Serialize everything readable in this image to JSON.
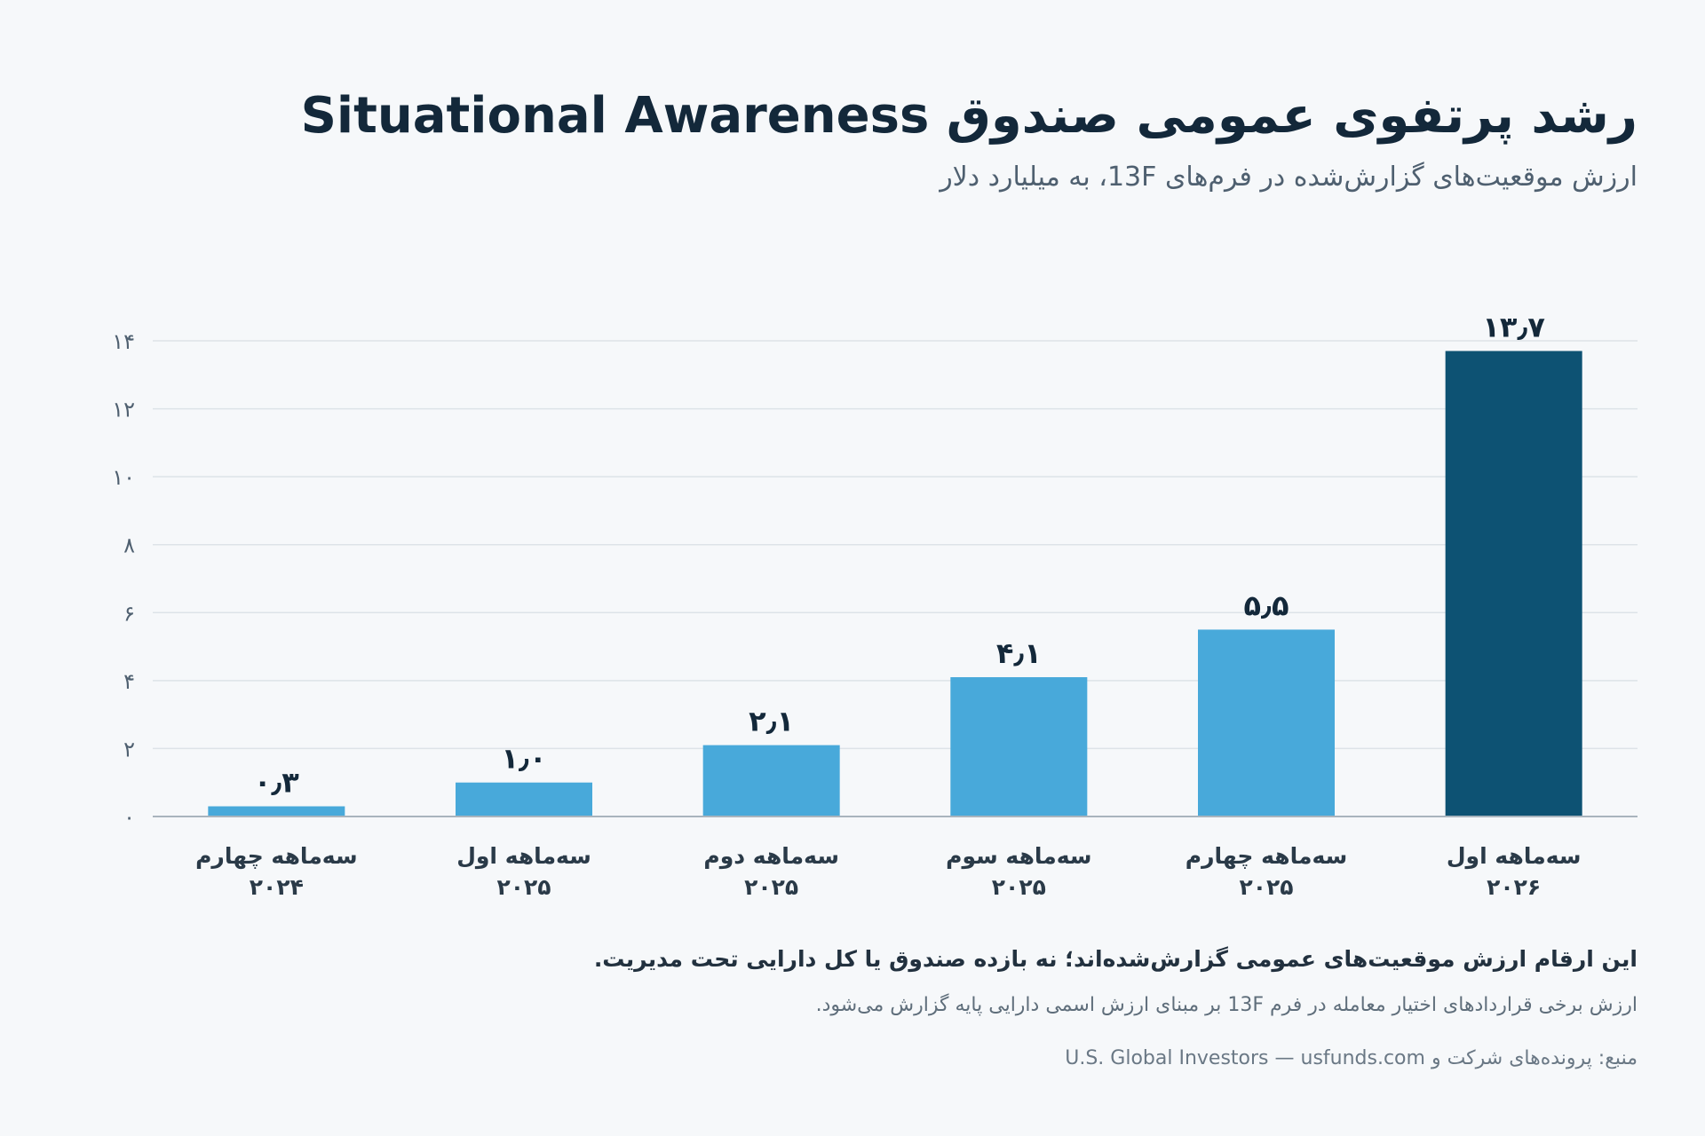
{
  "header": {
    "title": "رشد پرتفوی عمومی صندوق Situational Awareness",
    "subtitle": "ارزش موقعیت‌های گزارش‌شده در فرم‌های 13F، به میلیارد دلار"
  },
  "footer": {
    "note_main": "این ارقام ارزش موقعیت‌های عمومی گزارش‌شده‌اند؛ نه بازده صندوق یا کل دارایی تحت مدیریت.",
    "note_secondary": "ارزش برخی قراردادهای اختیار معامله در فرم 13F بر مبنای ارزش اسمی دارایی پایه گزارش می‌شود.",
    "source": "منبع: پرونده‌های شرکت و U.S. Global Investors — usfunds.com"
  },
  "colors": {
    "bar": "#48a9da",
    "bar_highlight": "#0d5273",
    "grid": "#dde3e8",
    "axis": "#a9b4bd",
    "text": "#13283a",
    "muted": "#4f6070"
  },
  "chart_data": {
    "type": "bar",
    "title": "رشد پرتفوی عمومی صندوق Situational Awareness",
    "subtitle": "ارزش موقعیت‌های گزارش‌شده در فرم‌های 13F، به میلیارد دلار",
    "categories": [
      [
        "سه‌ماهه چهارم",
        "۲۰۲۴"
      ],
      [
        "سه‌ماهه اول",
        "۲۰۲۵"
      ],
      [
        "سه‌ماهه دوم",
        "۲۰۲۵"
      ],
      [
        "سه‌ماهه سوم",
        "۲۰۲۵"
      ],
      [
        "سه‌ماهه چهارم",
        "۲۰۲۵"
      ],
      [
        "سه‌ماهه اول",
        "۲۰۲۶"
      ]
    ],
    "values": [
      0.3,
      1.0,
      2.1,
      4.1,
      5.5,
      13.7
    ],
    "value_labels": [
      "۰٫۳",
      "۱٫۰",
      "۲٫۱",
      "۴٫۱",
      "۵٫۵",
      "۱۳٫۷"
    ],
    "highlight_index": 5,
    "ylim": [
      0,
      14
    ],
    "yticks": [
      0,
      2,
      4,
      6,
      8,
      10,
      12,
      14
    ],
    "ytick_labels": [
      "۰",
      "۲",
      "۴",
      "۶",
      "۸",
      "۱۰",
      "۱۲",
      "۱۴"
    ],
    "xlabel": "",
    "ylabel": "",
    "grid": true,
    "legend": "none"
  }
}
